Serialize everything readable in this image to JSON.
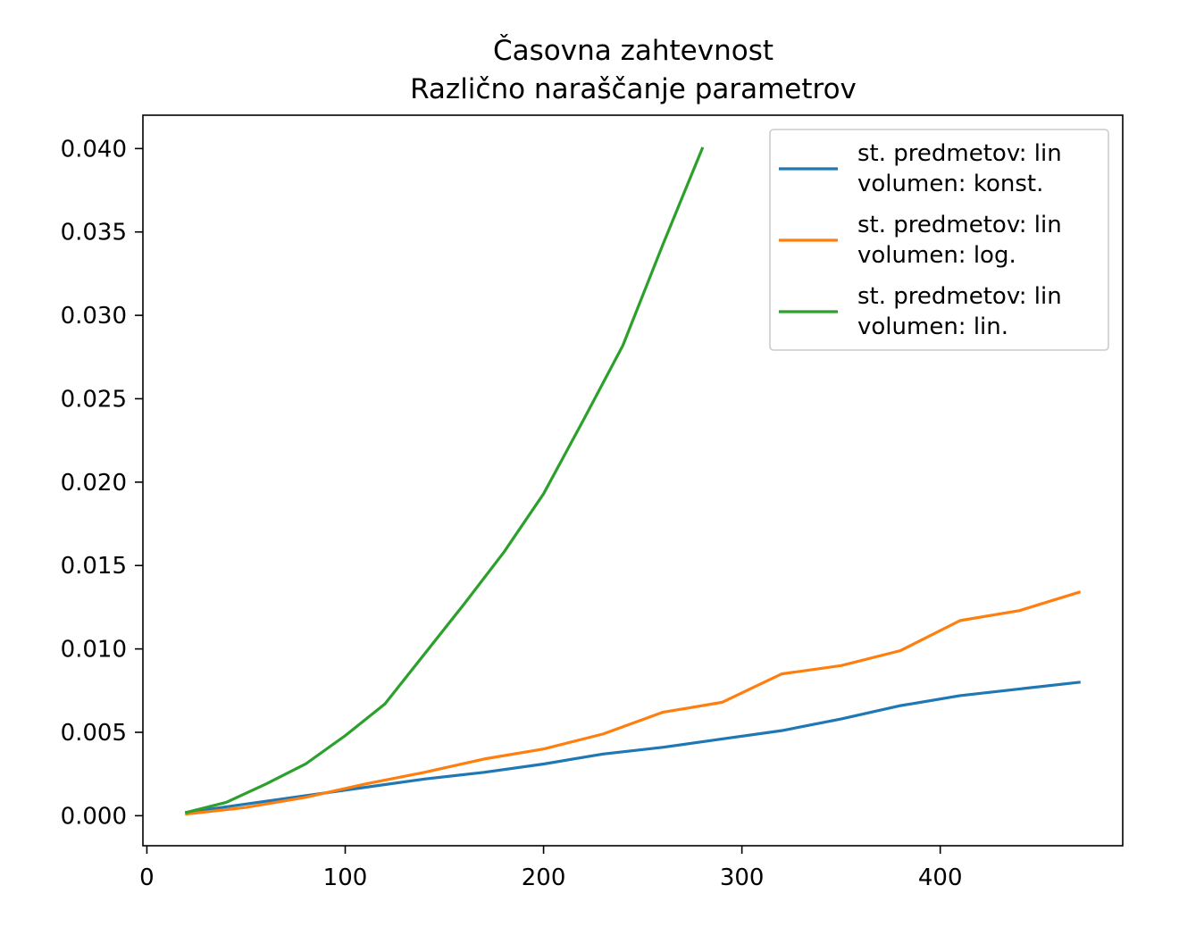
{
  "chart_data": {
    "type": "line",
    "title": [
      "Časovna zahtevnost",
      "Različno naraščanje parametrov"
    ],
    "xlabel": "",
    "ylabel": "",
    "xlim": [
      -2,
      492
    ],
    "ylim": [
      -0.0018,
      0.042
    ],
    "xticks": [
      0,
      100,
      200,
      300,
      400
    ],
    "xtick_labels": [
      "0",
      "100",
      "200",
      "300",
      "400"
    ],
    "yticks": [
      0.0,
      0.005,
      0.01,
      0.015,
      0.02,
      0.025,
      0.03,
      0.035,
      0.04
    ],
    "ytick_labels": [
      "0.000",
      "0.005",
      "0.010",
      "0.015",
      "0.020",
      "0.025",
      "0.030",
      "0.035",
      "0.040"
    ],
    "grid": false,
    "legend_position": "top-right",
    "series": [
      {
        "name": [
          "st. predmetov: lin",
          " volumen: konst."
        ],
        "color": "#1f77b4",
        "x": [
          20,
          50,
          80,
          110,
          140,
          170,
          200,
          230,
          260,
          290,
          320,
          350,
          380,
          410,
          440,
          470
        ],
        "y": [
          0.0002,
          0.0007,
          0.0012,
          0.0017,
          0.0022,
          0.0026,
          0.0031,
          0.0037,
          0.0041,
          0.0046,
          0.0051,
          0.0058,
          0.0066,
          0.0072,
          0.0076,
          0.008
        ]
      },
      {
        "name": [
          "st. predmetov: lin",
          " volumen: log."
        ],
        "color": "#ff7f0e",
        "x": [
          20,
          50,
          80,
          110,
          140,
          170,
          200,
          230,
          260,
          290,
          320,
          350,
          380,
          410,
          440,
          470
        ],
        "y": [
          0.0001,
          0.0005,
          0.0011,
          0.0019,
          0.0026,
          0.0034,
          0.004,
          0.0049,
          0.0062,
          0.0068,
          0.0085,
          0.009,
          0.0099,
          0.0117,
          0.0123,
          0.0134
        ]
      },
      {
        "name": [
          "st. predmetov: lin",
          " volumen: lin."
        ],
        "color": "#2ca02c",
        "x": [
          20,
          40,
          60,
          80,
          100,
          120,
          140,
          160,
          180,
          200,
          220,
          240,
          260,
          280
        ],
        "y": [
          0.0002,
          0.0008,
          0.0019,
          0.0031,
          0.0048,
          0.0067,
          0.0097,
          0.0127,
          0.0158,
          0.0193,
          0.0237,
          0.0282,
          0.0342,
          0.04
        ]
      }
    ]
  }
}
